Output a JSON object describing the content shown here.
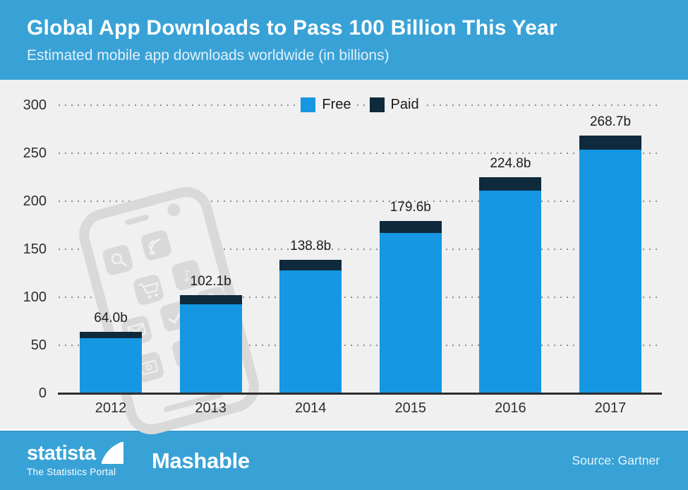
{
  "header": {
    "title": "Global App Downloads to Pass 100 Billion This Year",
    "subtitle": "Estimated mobile app downloads worldwide (in billions)"
  },
  "chart_data": {
    "type": "bar",
    "stacked": true,
    "title": "Global App Downloads to Pass 100 Billion This Year",
    "subtitle": "Estimated mobile app downloads worldwide (in billions)",
    "unit": "billions of downloads",
    "categories": [
      "2012",
      "2013",
      "2014",
      "2015",
      "2016",
      "2017"
    ],
    "series": [
      {
        "name": "Free",
        "color": "#1697e4",
        "values": [
          57.3,
          92.9,
          127.7,
          167.0,
          211.3,
          253.9
        ]
      },
      {
        "name": "Paid",
        "color": "#0e2a3c",
        "values": [
          6.7,
          9.2,
          11.1,
          12.6,
          13.5,
          14.8
        ]
      }
    ],
    "totals": [
      64.0,
      102.1,
      138.8,
      179.6,
      224.8,
      268.7
    ],
    "total_labels": [
      "64.0b",
      "102.1b",
      "138.8b",
      "179.6b",
      "224.8b",
      "268.7b"
    ],
    "ylim": [
      0,
      300
    ],
    "ytick_step": 50,
    "ytick_labels": [
      "0",
      "50",
      "100",
      "150",
      "200",
      "250",
      "300"
    ],
    "grid": "dotted-horizontal",
    "legend_position": "top-center"
  },
  "footer": {
    "brand": "statista",
    "brand_tagline": "The Statistics Portal",
    "partner": "Mashable",
    "source": "Source: Gartner"
  },
  "colors": {
    "band_blue": "#38a2d7",
    "free_blue": "#1697e4",
    "paid_navy": "#0e2a3c",
    "panel_bg": "#f0f0f0",
    "watermark_gray": "#d9d9d9"
  }
}
